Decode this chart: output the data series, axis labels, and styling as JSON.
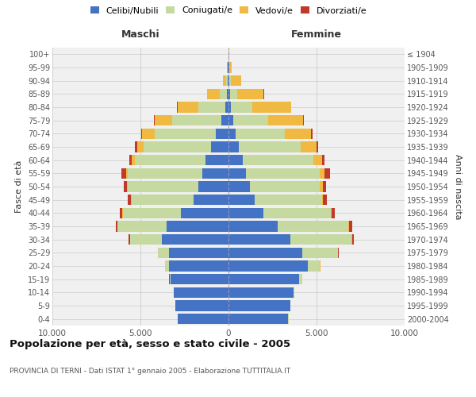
{
  "age_groups": [
    "0-4",
    "5-9",
    "10-14",
    "15-19",
    "20-24",
    "25-29",
    "30-34",
    "35-39",
    "40-44",
    "45-49",
    "50-54",
    "55-59",
    "60-64",
    "65-69",
    "70-74",
    "75-79",
    "80-84",
    "85-89",
    "90-94",
    "95-99",
    "100+"
  ],
  "birth_years": [
    "2000-2004",
    "1995-1999",
    "1990-1994",
    "1985-1989",
    "1980-1984",
    "1975-1979",
    "1970-1974",
    "1965-1969",
    "1960-1964",
    "1955-1959",
    "1950-1954",
    "1945-1949",
    "1940-1944",
    "1935-1939",
    "1930-1934",
    "1925-1929",
    "1920-1924",
    "1915-1919",
    "1910-1914",
    "1905-1909",
    "≤ 1904"
  ],
  "maschi": {
    "celibi": [
      2900,
      3000,
      3100,
      3300,
      3400,
      3400,
      3800,
      3500,
      2700,
      2000,
      1700,
      1500,
      1300,
      1000,
      700,
      400,
      200,
      100,
      50,
      30,
      10
    ],
    "coniugati": [
      2,
      5,
      10,
      50,
      200,
      600,
      1800,
      2800,
      3300,
      3500,
      4000,
      4200,
      4000,
      3800,
      3500,
      2800,
      1500,
      400,
      80,
      20,
      5
    ],
    "vedovi": [
      1,
      1,
      1,
      2,
      5,
      5,
      5,
      10,
      20,
      30,
      50,
      100,
      200,
      400,
      700,
      1000,
      1200,
      700,
      200,
      30,
      5
    ],
    "divorziati": [
      0,
      1,
      2,
      5,
      10,
      20,
      50,
      100,
      150,
      200,
      200,
      300,
      150,
      100,
      50,
      20,
      10,
      5,
      2,
      0,
      0
    ]
  },
  "femmine": {
    "nubili": [
      3400,
      3500,
      3700,
      4000,
      4500,
      4200,
      3500,
      2800,
      2000,
      1500,
      1200,
      1000,
      800,
      600,
      400,
      250,
      150,
      100,
      50,
      30,
      10
    ],
    "coniugate": [
      3,
      10,
      50,
      200,
      700,
      2000,
      3500,
      4000,
      3800,
      3800,
      4000,
      4200,
      4000,
      3500,
      2800,
      2000,
      1200,
      400,
      80,
      20,
      5
    ],
    "vedove": [
      1,
      1,
      2,
      3,
      5,
      10,
      20,
      30,
      50,
      80,
      150,
      250,
      500,
      900,
      1500,
      2000,
      2200,
      1500,
      600,
      150,
      30
    ],
    "divorziate": [
      0,
      1,
      2,
      5,
      10,
      30,
      100,
      200,
      200,
      200,
      200,
      300,
      150,
      100,
      80,
      30,
      15,
      5,
      2,
      0,
      0
    ]
  },
  "color_celibi": "#4472c4",
  "color_coniugati": "#c5d9a0",
  "color_vedovi": "#f0b942",
  "color_divorziati": "#c0392b",
  "xlim": 10000,
  "title": "Popolazione per età, sesso e stato civile - 2005",
  "subtitle": "PROVINCIA DI TERNI - Dati ISTAT 1° gennaio 2005 - Elaborazione TUTTITALIA.IT",
  "ylabel_left": "Fasce di età",
  "ylabel_right": "Anni di nascita",
  "xlabel_left": "Maschi",
  "xlabel_right": "Femmine",
  "bg_color": "#f0f0f0",
  "grid_color": "#cccccc"
}
